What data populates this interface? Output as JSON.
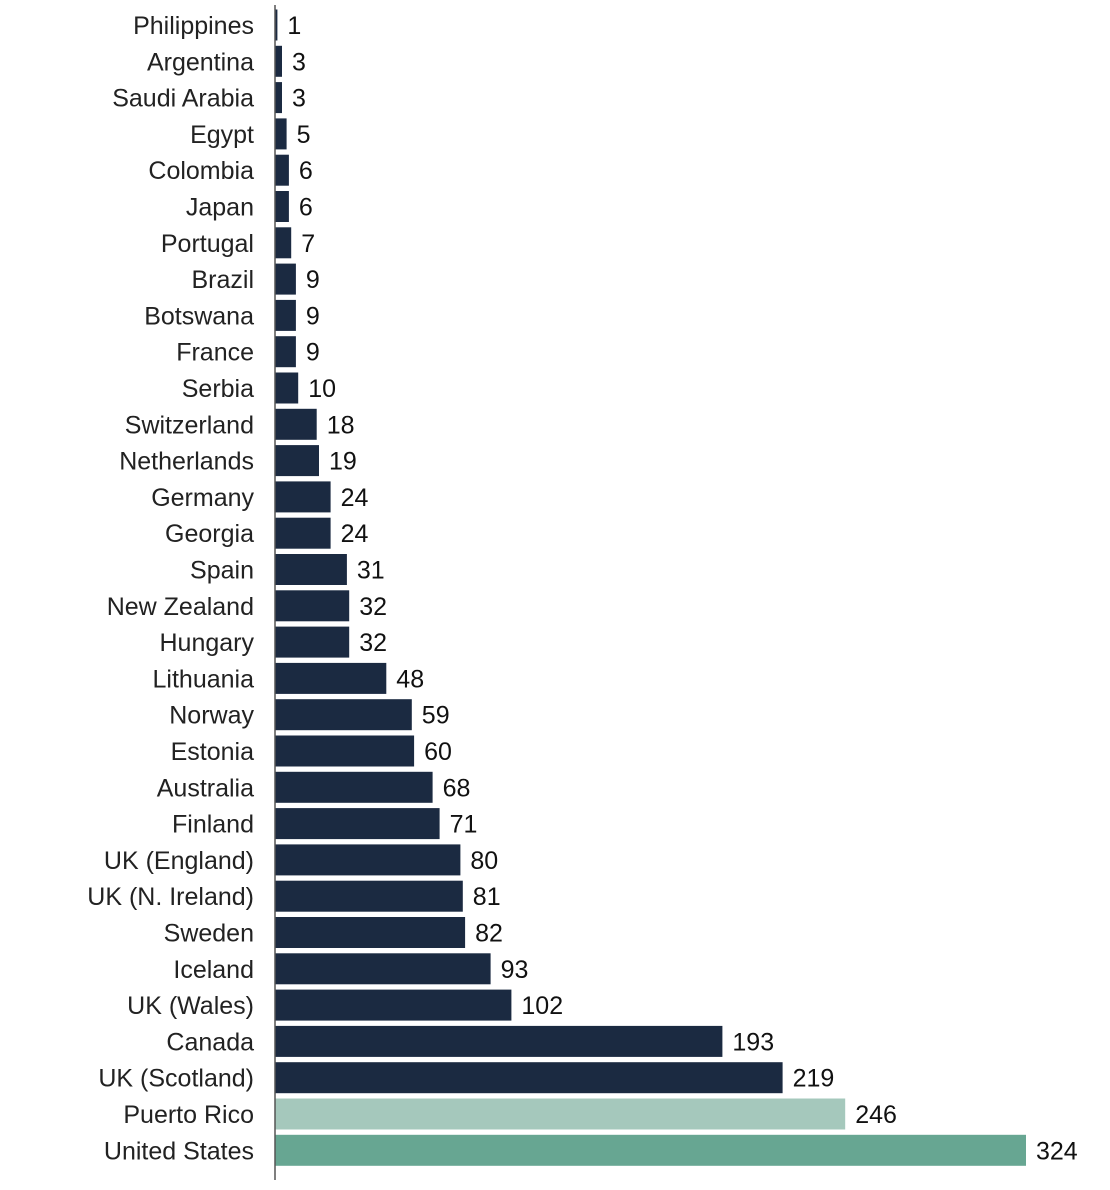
{
  "chart_data": {
    "type": "bar",
    "orientation": "horizontal",
    "categories": [
      "Philippines",
      "Argentina",
      "Saudi Arabia",
      "Egypt",
      "Colombia",
      "Japan",
      "Portugal",
      "Brazil",
      "Botswana",
      "France",
      "Serbia",
      "Switzerland",
      "Netherlands",
      "Germany",
      "Georgia",
      "Spain",
      "New Zealand",
      "Hungary",
      "Lithuania",
      "Norway",
      "Estonia",
      "Australia",
      "Finland",
      "UK (England)",
      "UK (N. Ireland)",
      "Sweden",
      "Iceland",
      "UK (Wales)",
      "Canada",
      "UK (Scotland)",
      "Puerto Rico",
      "United States"
    ],
    "values": [
      1,
      3,
      3,
      5,
      6,
      6,
      7,
      9,
      9,
      9,
      10,
      18,
      19,
      24,
      24,
      31,
      32,
      32,
      48,
      59,
      60,
      68,
      71,
      80,
      81,
      82,
      93,
      102,
      193,
      219,
      246,
      324
    ],
    "bar_colors": [
      "#1b2a41",
      "#1b2a41",
      "#1b2a41",
      "#1b2a41",
      "#1b2a41",
      "#1b2a41",
      "#1b2a41",
      "#1b2a41",
      "#1b2a41",
      "#1b2a41",
      "#1b2a41",
      "#1b2a41",
      "#1b2a41",
      "#1b2a41",
      "#1b2a41",
      "#1b2a41",
      "#1b2a41",
      "#1b2a41",
      "#1b2a41",
      "#1b2a41",
      "#1b2a41",
      "#1b2a41",
      "#1b2a41",
      "#1b2a41",
      "#1b2a41",
      "#1b2a41",
      "#1b2a41",
      "#1b2a41",
      "#1b2a41",
      "#1b2a41",
      "#a5c8bc",
      "#67a692"
    ],
    "title": "",
    "xlabel": "",
    "ylabel": "",
    "xlim": [
      0,
      324
    ],
    "grid": false,
    "legend": "none"
  }
}
